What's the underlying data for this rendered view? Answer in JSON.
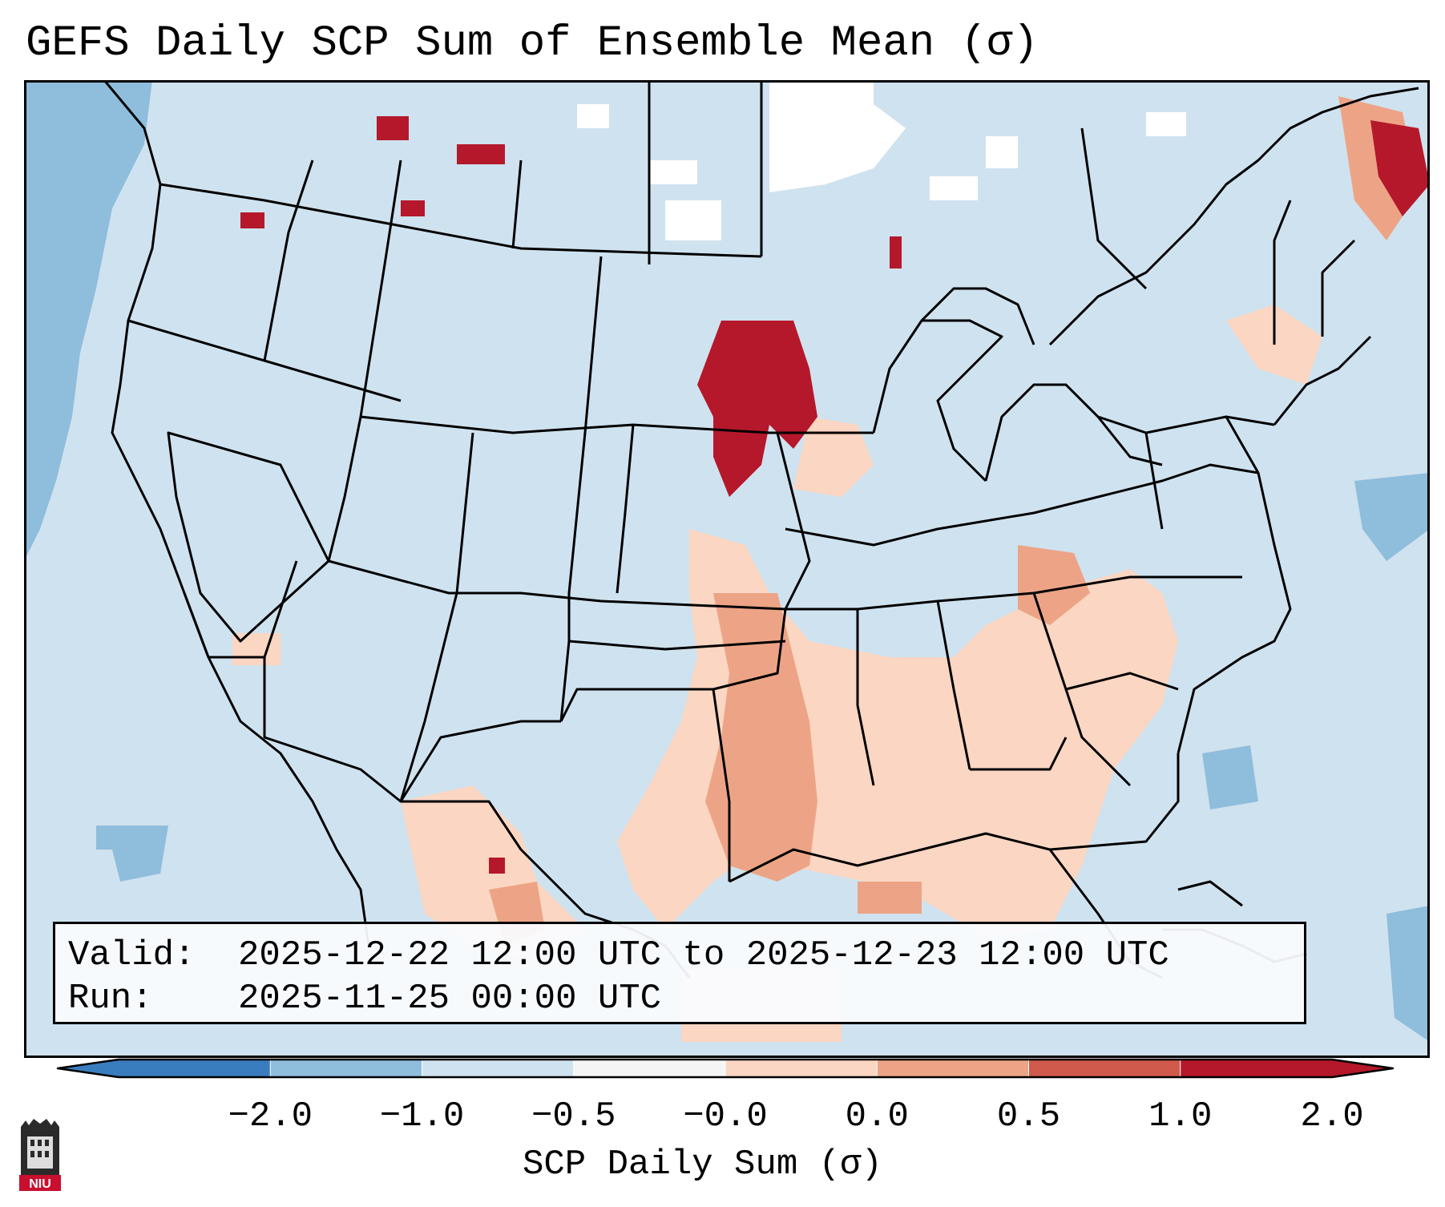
{
  "title": "GEFS Daily SCP Sum of Ensemble Mean (σ)",
  "info": {
    "valid_label": "Valid:",
    "valid_value": "2025-12-22 12:00 UTC to 2025-12-23 12:00 UTC",
    "run_label": "Run:",
    "run_value": "2025-11-25 00:00 UTC"
  },
  "colorbar": {
    "label": "SCP Daily Sum (σ)",
    "ticks": [
      "−2.0",
      "−1.0",
      "−0.5",
      "−0.0",
      "0.0",
      "0.5",
      "1.0",
      "2.0"
    ],
    "colors": [
      "#3a7dbf",
      "#8fbddc",
      "#cfe2ef",
      "#f5f5f5",
      "#fbd6c2",
      "#eda486",
      "#d05a4c",
      "#b5182b"
    ],
    "extend": "both"
  },
  "logo": {
    "text": "NIU"
  },
  "palette": {
    "ocean": "#8fbddc",
    "land": "#cfe2ef",
    "white": "#ffffff",
    "light_red": "#fbd6c2",
    "mid_red": "#eda486",
    "dark_red": "#b5182b"
  }
}
